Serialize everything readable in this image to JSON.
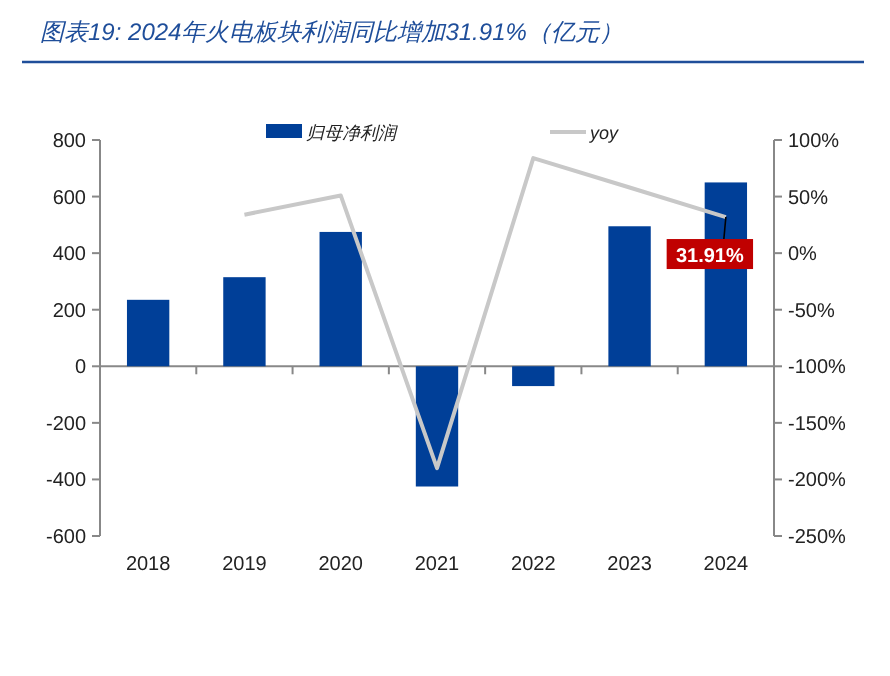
{
  "chart_data": {
    "type": "bar",
    "title": "图表19: 2024年火电板块利润同比增加31.91%（亿元）",
    "categories": [
      "2018",
      "2019",
      "2020",
      "2021",
      "2022",
      "2023",
      "2024"
    ],
    "series": [
      {
        "name": "归母净利润",
        "color": "#003f98",
        "values": [
          235,
          315,
          475,
          -425,
          -70,
          495,
          650
        ]
      },
      {
        "name": "yoy",
        "type": "line",
        "axis": "y2",
        "color": "#c8c8c8",
        "values": [
          null,
          34,
          51,
          -190,
          84,
          58,
          31.91
        ],
        "value_labels": [
          null,
          null,
          null,
          null,
          null,
          null,
          "31.91%"
        ]
      }
    ],
    "ylim": [
      -600,
      800
    ],
    "yticks": [
      -600,
      -400,
      -200,
      0,
      200,
      400,
      600,
      800
    ],
    "y2lim": [
      -250,
      100
    ],
    "y2ticks": [
      {
        "value": -250,
        "label": "-250%"
      },
      {
        "value": -200,
        "label": "-200%"
      },
      {
        "value": -150,
        "label": "-150%"
      },
      {
        "value": -100,
        "label": "-100%"
      },
      {
        "value": -50,
        "label": "-50%"
      },
      {
        "value": 0,
        "label": "0%"
      },
      {
        "value": 50,
        "label": "50%"
      },
      {
        "value": 100,
        "label": "100%"
      }
    ],
    "legend": "top"
  }
}
